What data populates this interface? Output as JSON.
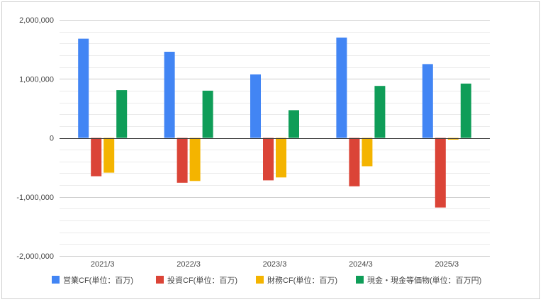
{
  "chart_data": {
    "type": "bar",
    "categories": [
      "2021/3",
      "2022/3",
      "2023/3",
      "2024/3",
      "2025/3"
    ],
    "series": [
      {
        "name": "営業CF(単位：百万)",
        "color": "#4285f4",
        "values": [
          1680000,
          1460000,
          1075000,
          1700000,
          1250000
        ]
      },
      {
        "name": "投資CF(単位：百万)",
        "color": "#db4437",
        "values": [
          -650000,
          -760000,
          -720000,
          -820000,
          -1180000
        ]
      },
      {
        "name": "財務CF(単位：百万)",
        "color": "#f4b400",
        "values": [
          -590000,
          -730000,
          -670000,
          -480000,
          -30000
        ]
      },
      {
        "name": "現金・現金等価物(単位：百万円)",
        "color": "#0f9d58",
        "values": [
          810000,
          800000,
          470000,
          880000,
          920000
        ]
      }
    ],
    "y_ticks": [
      "2,000,000",
      "1,000,000",
      "0",
      "-1,000,000",
      "-2,000,000"
    ],
    "ylim": [
      -2000000,
      2000000
    ],
    "grid": true,
    "legend_position": "bottom",
    "title": "",
    "xlabel": "",
    "ylabel": ""
  }
}
